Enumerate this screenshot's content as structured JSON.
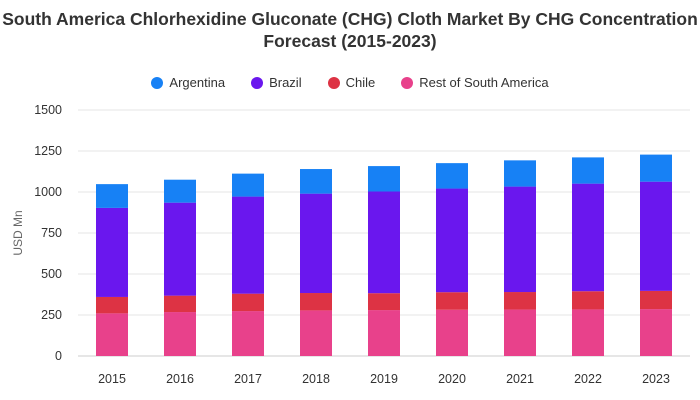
{
  "chart_data": {
    "type": "bar",
    "stacked": true,
    "title": "South America Chlorhexidine Gluconate (CHG) Cloth Market By CHG Concentration Forecast (2015-2023)",
    "ylabel": "USD Mn",
    "xlabel": "",
    "ylim": [
      0,
      1500
    ],
    "yticks": [
      0,
      250,
      500,
      750,
      1000,
      1250,
      1500
    ],
    "grid": true,
    "legend_position": "top",
    "categories": [
      "2015",
      "2016",
      "2017",
      "2018",
      "2019",
      "2020",
      "2021",
      "2022",
      "2023"
    ],
    "series": [
      {
        "name": "Rest of South America",
        "color": "#e8418b",
        "values": [
          260,
          268,
          274,
          278,
          280,
          282,
          283,
          284,
          286
        ]
      },
      {
        "name": "Chile",
        "color": "#dd3344",
        "values": [
          100,
          100,
          106,
          106,
          103,
          107,
          107,
          111,
          111
        ]
      },
      {
        "name": "Brazil",
        "color": "#6a17ee",
        "values": [
          543,
          567,
          592,
          606,
          620,
          632,
          643,
          656,
          666
        ]
      },
      {
        "name": "Argentina",
        "color": "#1781f5",
        "values": [
          145,
          140,
          140,
          150,
          155,
          155,
          160,
          160,
          165
        ]
      }
    ],
    "legend_order": [
      "Argentina",
      "Brazil",
      "Chile",
      "Rest of South America"
    ]
  }
}
